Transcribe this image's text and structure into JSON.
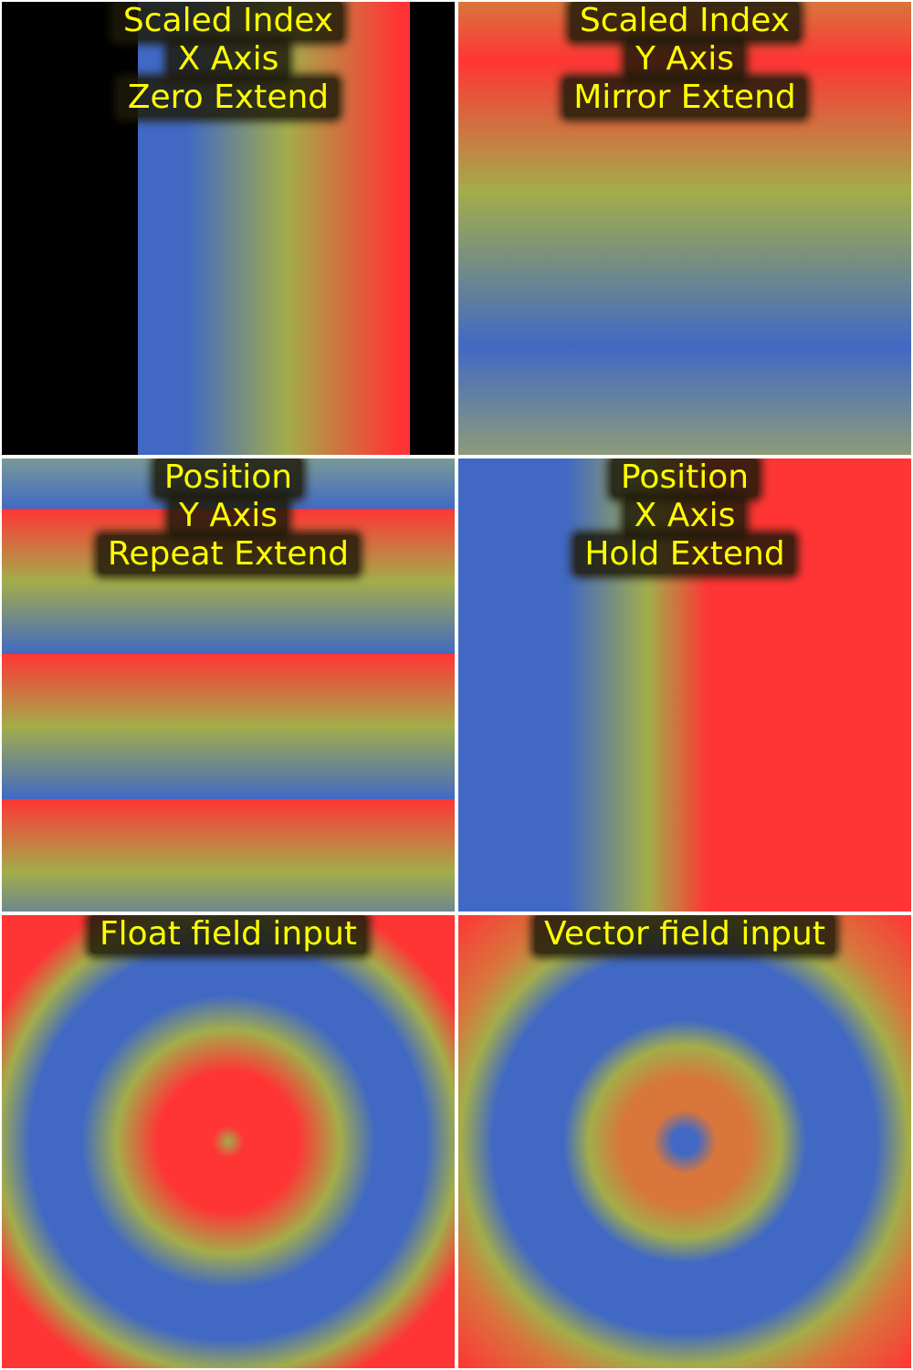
{
  "panels": [
    {
      "id": "scaled-index-x-zero",
      "caption": [
        "Scaled Index",
        "X Axis",
        "Zero Extend"
      ]
    },
    {
      "id": "scaled-index-y-mirror",
      "caption": [
        "Scaled Index",
        "Y Axis",
        "Mirror Extend"
      ]
    },
    {
      "id": "position-y-repeat",
      "caption": [
        "Position",
        "Y Axis",
        "Repeat Extend"
      ]
    },
    {
      "id": "position-x-hold",
      "caption": [
        "Position",
        "X Axis",
        "Hold Extend"
      ]
    },
    {
      "id": "float-field-input",
      "caption": [
        "Float field input"
      ]
    },
    {
      "id": "vector-field-input",
      "caption": [
        "Vector field input"
      ]
    }
  ],
  "colors": {
    "blue": "#4169c4",
    "yellow": "#a3ad4a",
    "red": "#ff3535",
    "black": "#000000",
    "caption_text": "#ffff00",
    "background": "#ffffff"
  }
}
